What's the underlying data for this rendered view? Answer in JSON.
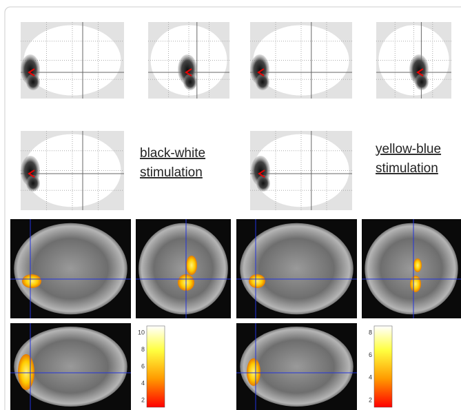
{
  "labels": [
    [
      "black-white",
      "stimulation"
    ],
    [
      "yellow-blue",
      "stimulation"
    ]
  ],
  "colorbars": [
    {
      "ticks": [
        10,
        8,
        6,
        4,
        2
      ]
    },
    {
      "ticks": [
        8,
        6,
        4,
        2
      ]
    }
  ]
}
